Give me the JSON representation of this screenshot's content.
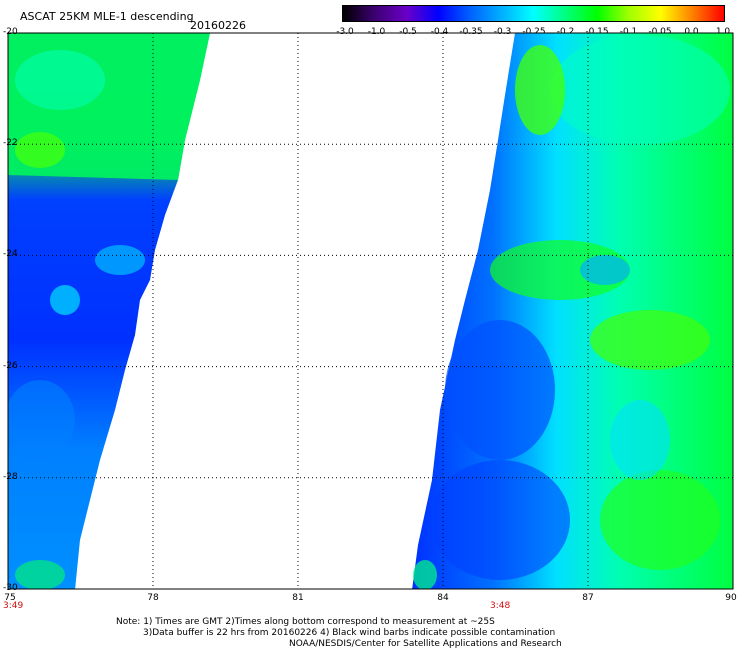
{
  "header": {
    "title": "ASCAT 25KM MLE-1 descending",
    "date": "20160226"
  },
  "colorbar": {
    "ticks": [
      "-3.0",
      "-1.0",
      "-0.5",
      "-0.4",
      "-0.35",
      "-0.3",
      "-0.25",
      "-0.2",
      "-0.15",
      "-0.1",
      "-0.05",
      "0.0",
      "1.0"
    ],
    "colors": [
      "#000000",
      "#3c0070",
      "#6a00c8",
      "#0000ff",
      "#0060ff",
      "#00b0ff",
      "#00ffff",
      "#00ff80",
      "#00ff00",
      "#a0ff00",
      "#ffff00",
      "#ff8000",
      "#ff0000"
    ]
  },
  "map": {
    "x_ticks": [
      "75",
      "78",
      "81",
      "84",
      "87",
      "90"
    ],
    "y_ticks": [
      "-20",
      "-22",
      "-24",
      "-26",
      "-28",
      "-30"
    ],
    "lon_range": [
      75,
      90
    ],
    "lat_range": [
      -30,
      -20
    ],
    "grid": true
  },
  "times": {
    "left_pass": "3:49",
    "right_pass": "3:48"
  },
  "notes": {
    "line1": "Note: 1) Times are GMT 2)Times along bottom correspond to measurement at ~25S",
    "line2": "3)Data buffer is 22 hrs from 20160226 4) Black wind barbs indicate possible contamination",
    "line3": "NOAA/NESDIS/Center for Satellite Applications and Research"
  }
}
